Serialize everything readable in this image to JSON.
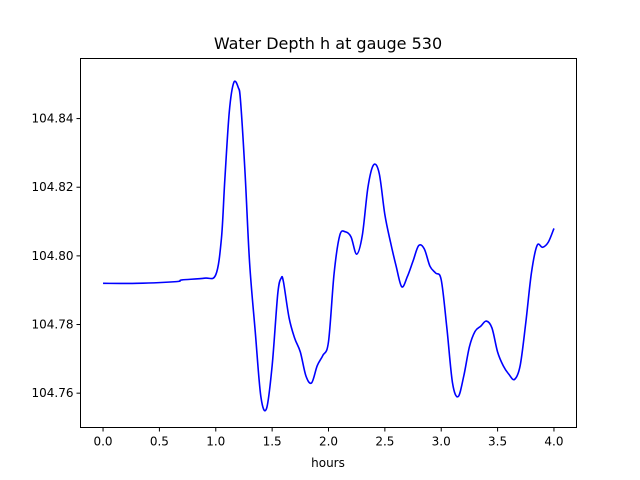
{
  "chart_data": {
    "type": "line",
    "title": "Water Depth h at gauge 530",
    "xlabel": "hours",
    "ylabel": "",
    "xlim": [
      -0.2,
      4.2
    ],
    "ylim": [
      104.75,
      104.8575
    ],
    "grid": false,
    "x_ticks": [
      0.0,
      0.5,
      1.0,
      1.5,
      2.0,
      2.5,
      3.0,
      3.5,
      4.0
    ],
    "x_tick_labels": [
      "0.0",
      "0.5",
      "1.0",
      "1.5",
      "2.0",
      "2.5",
      "3.0",
      "3.5",
      "4.0"
    ],
    "y_ticks": [
      104.76,
      104.78,
      104.8,
      104.82,
      104.84
    ],
    "y_tick_labels": [
      "104.76",
      "104.78",
      "104.80",
      "104.82",
      "104.84"
    ],
    "line_color": "#0000ff",
    "series": [
      {
        "x": [
          0.0,
          0.3,
          0.65,
          0.7,
          0.9,
          1.0,
          1.05,
          1.08,
          1.12,
          1.16,
          1.2,
          1.22,
          1.26,
          1.3,
          1.35,
          1.4,
          1.45,
          1.5,
          1.55,
          1.58,
          1.6,
          1.65,
          1.7,
          1.75,
          1.8,
          1.85,
          1.9,
          1.95,
          2.0,
          2.05,
          2.1,
          2.15,
          2.2,
          2.25,
          2.3,
          2.35,
          2.4,
          2.45,
          2.5,
          2.55,
          2.6,
          2.65,
          2.7,
          2.75,
          2.8,
          2.85,
          2.9,
          2.95,
          3.0,
          3.05,
          3.1,
          3.15,
          3.2,
          3.25,
          3.3,
          3.35,
          3.4,
          3.45,
          3.5,
          3.55,
          3.6,
          3.65,
          3.7,
          3.75,
          3.8,
          3.85,
          3.9,
          3.95,
          4.0
        ],
        "y": [
          104.792,
          104.792,
          104.7925,
          104.793,
          104.7935,
          104.7945,
          104.805,
          104.822,
          104.842,
          104.8505,
          104.849,
          104.845,
          104.824,
          104.798,
          104.778,
          104.759,
          104.7555,
          104.768,
          104.789,
          104.7935,
          104.7925,
          104.782,
          104.776,
          104.772,
          104.765,
          104.763,
          104.768,
          104.771,
          104.775,
          104.795,
          104.806,
          104.807,
          104.8055,
          104.8005,
          104.806,
          104.82,
          104.8265,
          104.824,
          104.812,
          104.804,
          104.797,
          104.791,
          104.794,
          104.7985,
          104.803,
          104.802,
          104.797,
          104.795,
          104.793,
          104.779,
          104.763,
          104.759,
          104.765,
          104.7735,
          104.778,
          104.7795,
          104.781,
          104.779,
          104.772,
          104.768,
          104.7655,
          104.764,
          104.768,
          104.7805,
          104.795,
          104.803,
          104.8025,
          104.804,
          104.808
        ]
      }
    ]
  }
}
